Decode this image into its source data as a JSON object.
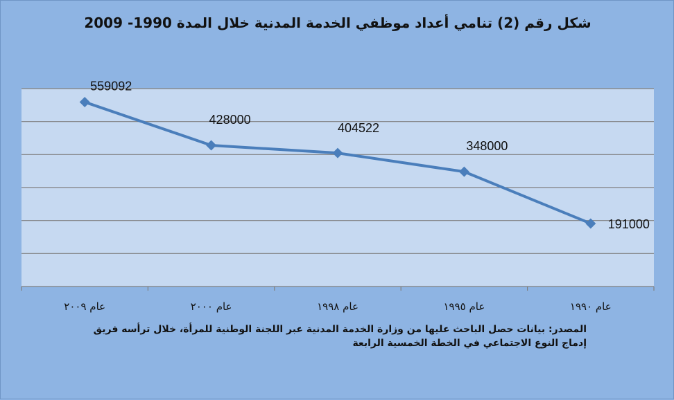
{
  "title": "شكل رقم (2) تنامي أعداد موظفي الخدمة المدنية خلال المدة 1990- 2009",
  "source": {
    "line1": "المصدر: بيانات حصل الباحث عليها من وزارة الخدمة المدنية عبر اللجنة الوطنية للمرأة، خلال ترأسه فريق",
    "line2": "إدماج النوع الاجتماعي في الخطة الخمسية الرابعة"
  },
  "colors": {
    "background": "#8EB4E3",
    "plot_area": "#C6D9F1",
    "gridline": "#7F7F7F",
    "series": "#4A7EBB"
  },
  "chart_data": {
    "type": "line",
    "title": "شكل رقم (2) تنامي أعداد موظفي الخدمة المدنية خلال المدة 1990- 2009",
    "categories": [
      "عام ٢٠٠٩",
      "عام ٢٠٠٠",
      "عام ١٩٩٨",
      "عام ١٩٩٥",
      "عام ١٩٩٠"
    ],
    "series": [
      {
        "values": [
          559092,
          428000,
          404522,
          348000,
          191000
        ]
      }
    ],
    "data_labels": [
      "559092",
      "428000",
      "404522",
      "348000",
      "191000"
    ],
    "ylim": [
      0,
      600000
    ],
    "y_tick_step": 100000,
    "y_tick_labels_visible": false,
    "grid": true,
    "legend": "none",
    "marker": "diamond"
  }
}
